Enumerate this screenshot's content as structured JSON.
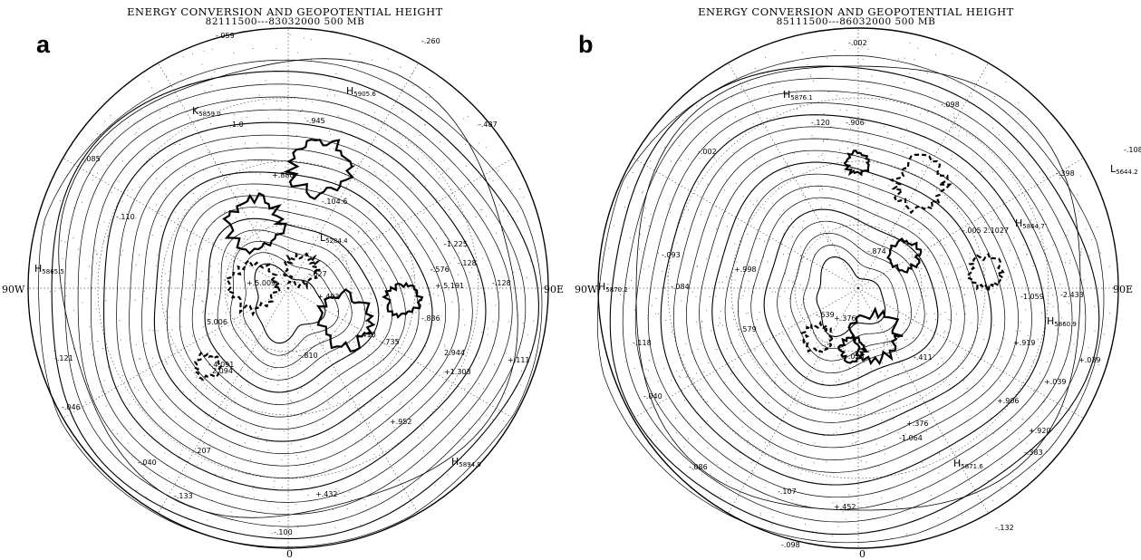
{
  "panels": [
    {
      "id": "a",
      "letter": "a",
      "title": "ENERGY CONVERSION AND GEOPOTENTIAL HEIGHT",
      "subtitle": "82111500---83032000   500 MB",
      "lon_labels": {
        "left": "90W",
        "right": "90E",
        "bottom": "0"
      },
      "centers": [
        {
          "type": "H",
          "value": "5905.6"
        },
        {
          "type": "H",
          "value": "5865.5"
        },
        {
          "type": "H",
          "value": "5894.9"
        },
        {
          "type": "K",
          "value": "5859.0"
        },
        {
          "type": "L",
          "value": "5284.4"
        }
      ],
      "values": [
        "-.059",
        "-.260",
        "-.945",
        "-.487",
        "-.085",
        "-.110",
        "-.121",
        "-.046",
        "-.040",
        "-.207",
        "-.133",
        "-.100",
        "+.432",
        "+.952",
        "+.111",
        "-.128",
        "-1.225",
        "-.576",
        "-.836",
        "-.410",
        "-.735",
        "-.810",
        "+1.303",
        "2.944",
        "1.0",
        "+.880",
        "-.104.6",
        "+.403",
        "-.128",
        "+.5.009",
        "-.627",
        "2.094",
        "5.006",
        "-.4.091",
        "+.5.191"
      ]
    },
    {
      "id": "b",
      "letter": "b",
      "title": "ENERGY CONVERSION AND GEOPOTENTIAL HEIGHT",
      "subtitle": "85111500---86032000   500 MB",
      "lon_labels": {
        "left": "90W",
        "right": "90E",
        "bottom": "0"
      },
      "centers": [
        {
          "type": "H",
          "value": "5876.1"
        },
        {
          "type": "H",
          "value": "5870.2"
        },
        {
          "type": "H",
          "value": "5864.7"
        },
        {
          "type": "H",
          "value": "5860.9"
        },
        {
          "type": "H",
          "value": "5871.6"
        },
        {
          "type": "L",
          "value": "5644.2"
        }
      ],
      "values": [
        "-.002",
        "-.098",
        "-.120",
        "-.906",
        "-.002",
        "-.108",
        "-.398",
        "-.093",
        "-.084",
        "-.118",
        "-.040",
        "-.086",
        "-.107",
        "-.098",
        "-.132",
        "+.452",
        "-.383",
        "+.376",
        "-1.064",
        "+.920",
        "+.039",
        "-.411",
        "+.039",
        "-2.433",
        "-1.059",
        "+.376",
        "-.025",
        "-.579",
        "+.919",
        "+.906",
        "-.639",
        "+.998",
        "-.005",
        "2.1027",
        "-.874"
      ]
    }
  ]
}
